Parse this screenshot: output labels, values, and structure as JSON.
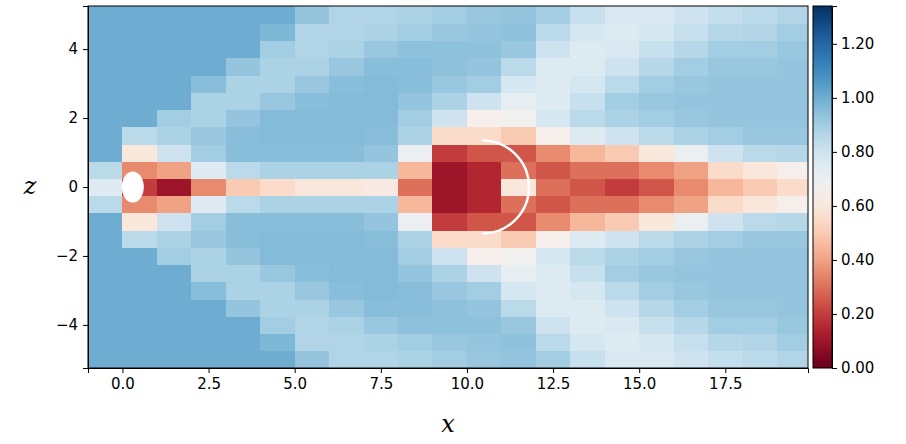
{
  "chart_data": {
    "type": "heatmap",
    "x_label": "x",
    "y_label": "z",
    "xlim": [
      -1,
      19.9
    ],
    "ylim": [
      -5.25,
      5.25
    ],
    "xticks": [
      {
        "value": 0,
        "label": "0.0"
      },
      {
        "value": 2.5,
        "label": "2.5"
      },
      {
        "value": 5,
        "label": "5.0"
      },
      {
        "value": 7.5,
        "label": "7.5"
      },
      {
        "value": 10,
        "label": "10.0"
      },
      {
        "value": 12.5,
        "label": "12.5"
      },
      {
        "value": 15,
        "label": "15.0"
      },
      {
        "value": 17.5,
        "label": "17.5"
      }
    ],
    "yticks": [
      {
        "value": -4,
        "label": "−4"
      },
      {
        "value": -2,
        "label": "−2"
      },
      0,
      2,
      4
    ],
    "x_edges": [
      -1,
      0,
      1,
      2,
      3,
      4,
      5,
      6,
      7,
      8,
      9,
      10,
      11,
      12,
      13,
      14,
      15,
      16,
      17,
      18,
      19,
      20
    ],
    "y_edges": [
      -5.25,
      -4.75,
      -4.25,
      -3.75,
      -3.25,
      -2.75,
      -2.25,
      -1.75,
      -1.25,
      -0.75,
      -0.25,
      0.25,
      0.75,
      1.25,
      1.75,
      2.25,
      2.75,
      3.25,
      3.75,
      4.25,
      4.75,
      5.25
    ],
    "cells": [
      [
        1.0,
        1.0,
        1.0,
        1.0,
        1.0,
        1.0,
        0.93,
        0.87,
        0.87,
        0.88,
        0.9,
        0.92,
        0.93,
        0.9,
        0.82,
        0.77,
        0.77,
        0.8,
        0.83,
        0.85,
        0.87
      ],
      [
        1.0,
        1.0,
        1.0,
        1.0,
        1.0,
        0.97,
        0.87,
        0.87,
        0.88,
        0.9,
        0.92,
        0.93,
        0.94,
        0.85,
        0.78,
        0.76,
        0.78,
        0.82,
        0.86,
        0.87,
        0.9
      ],
      [
        1.0,
        1.0,
        1.0,
        1.0,
        1.0,
        0.9,
        0.87,
        0.88,
        0.92,
        0.94,
        0.94,
        0.94,
        0.92,
        0.8,
        0.76,
        0.77,
        0.82,
        0.86,
        0.9,
        0.9,
        0.92
      ],
      [
        1.0,
        1.0,
        1.0,
        1.0,
        0.93,
        0.88,
        0.88,
        0.92,
        0.95,
        0.95,
        0.94,
        0.93,
        0.85,
        0.76,
        0.76,
        0.8,
        0.86,
        0.9,
        0.92,
        0.92,
        0.93
      ],
      [
        1.0,
        1.0,
        1.0,
        0.95,
        0.88,
        0.88,
        0.92,
        0.95,
        0.96,
        0.95,
        0.92,
        0.9,
        0.78,
        0.75,
        0.78,
        0.85,
        0.9,
        0.92,
        0.93,
        0.93,
        0.93
      ],
      [
        1.0,
        1.0,
        1.0,
        0.88,
        0.88,
        0.92,
        0.95,
        0.96,
        0.96,
        0.93,
        0.88,
        0.8,
        0.72,
        0.75,
        0.82,
        0.9,
        0.92,
        0.93,
        0.93,
        0.93,
        0.93
      ],
      [
        1.0,
        1.0,
        0.9,
        0.88,
        0.93,
        0.96,
        0.96,
        0.96,
        0.96,
        0.9,
        0.8,
        0.65,
        0.68,
        0.78,
        0.85,
        0.88,
        0.9,
        0.92,
        0.93,
        0.93,
        0.93
      ],
      [
        1.0,
        0.85,
        0.88,
        0.92,
        0.95,
        0.96,
        0.96,
        0.96,
        0.95,
        0.88,
        0.55,
        0.55,
        0.5,
        0.65,
        0.75,
        0.8,
        0.85,
        0.88,
        0.9,
        0.92,
        0.92
      ],
      [
        1.0,
        0.6,
        0.8,
        0.9,
        0.95,
        0.95,
        0.95,
        0.95,
        0.93,
        0.7,
        0.2,
        0.25,
        0.25,
        0.35,
        0.45,
        0.5,
        0.6,
        0.7,
        0.8,
        0.85,
        0.86
      ],
      [
        0.85,
        0.35,
        0.4,
        0.75,
        0.85,
        0.88,
        0.88,
        0.88,
        0.88,
        0.45,
        0.1,
        0.15,
        0.3,
        0.25,
        0.3,
        0.3,
        0.35,
        0.4,
        0.55,
        0.6,
        0.65
      ],
      [
        0.75,
        0.2,
        0.1,
        0.35,
        0.5,
        0.55,
        0.6,
        0.6,
        0.62,
        0.3,
        0.1,
        0.15,
        0.6,
        0.3,
        0.25,
        0.2,
        0.25,
        0.35,
        0.45,
        0.5,
        0.55
      ],
      [
        0.85,
        0.35,
        0.4,
        0.75,
        0.85,
        0.88,
        0.88,
        0.88,
        0.88,
        0.45,
        0.1,
        0.15,
        0.3,
        0.25,
        0.3,
        0.3,
        0.35,
        0.4,
        0.55,
        0.6,
        0.65
      ],
      [
        1.0,
        0.6,
        0.8,
        0.9,
        0.95,
        0.95,
        0.95,
        0.95,
        0.93,
        0.7,
        0.2,
        0.25,
        0.25,
        0.35,
        0.45,
        0.5,
        0.6,
        0.7,
        0.8,
        0.85,
        0.86
      ],
      [
        1.0,
        0.85,
        0.88,
        0.92,
        0.95,
        0.96,
        0.96,
        0.96,
        0.95,
        0.88,
        0.55,
        0.55,
        0.5,
        0.65,
        0.75,
        0.8,
        0.85,
        0.88,
        0.9,
        0.92,
        0.92
      ],
      [
        1.0,
        1.0,
        0.9,
        0.88,
        0.93,
        0.96,
        0.96,
        0.96,
        0.96,
        0.9,
        0.8,
        0.65,
        0.68,
        0.78,
        0.85,
        0.88,
        0.9,
        0.92,
        0.93,
        0.93,
        0.93
      ],
      [
        1.0,
        1.0,
        1.0,
        0.88,
        0.88,
        0.92,
        0.95,
        0.96,
        0.96,
        0.93,
        0.88,
        0.8,
        0.72,
        0.75,
        0.82,
        0.9,
        0.92,
        0.93,
        0.93,
        0.93,
        0.93
      ],
      [
        1.0,
        1.0,
        1.0,
        0.95,
        0.88,
        0.88,
        0.92,
        0.95,
        0.96,
        0.95,
        0.92,
        0.9,
        0.78,
        0.75,
        0.78,
        0.85,
        0.9,
        0.92,
        0.93,
        0.93,
        0.93
      ],
      [
        1.0,
        1.0,
        1.0,
        1.0,
        0.93,
        0.88,
        0.88,
        0.92,
        0.95,
        0.95,
        0.94,
        0.93,
        0.85,
        0.76,
        0.76,
        0.8,
        0.86,
        0.9,
        0.92,
        0.92,
        0.93
      ],
      [
        1.0,
        1.0,
        1.0,
        1.0,
        1.0,
        0.9,
        0.87,
        0.88,
        0.92,
        0.94,
        0.94,
        0.94,
        0.92,
        0.8,
        0.76,
        0.77,
        0.82,
        0.86,
        0.9,
        0.9,
        0.92
      ],
      [
        1.0,
        1.0,
        1.0,
        1.0,
        1.0,
        0.97,
        0.87,
        0.87,
        0.88,
        0.9,
        0.92,
        0.93,
        0.94,
        0.85,
        0.78,
        0.76,
        0.78,
        0.82,
        0.86,
        0.87,
        0.9
      ],
      [
        1.0,
        1.0,
        1.0,
        1.0,
        1.0,
        1.0,
        0.93,
        0.87,
        0.87,
        0.88,
        0.9,
        0.92,
        0.93,
        0.9,
        0.82,
        0.77,
        0.77,
        0.8,
        0.83,
        0.85,
        0.87
      ]
    ],
    "colorbar": {
      "lim": [
        0,
        1.34
      ],
      "ticks": [
        {
          "value": 0,
          "label": "0.00"
        },
        {
          "value": 0.2,
          "label": "0.20"
        },
        {
          "value": 0.4,
          "label": "0.40"
        },
        {
          "value": 0.6,
          "label": "0.60"
        },
        {
          "value": 0.8,
          "label": "0.80"
        },
        {
          "value": 1.0,
          "label": "1.00"
        },
        {
          "value": 1.2,
          "label": "1.20"
        }
      ]
    }
  }
}
